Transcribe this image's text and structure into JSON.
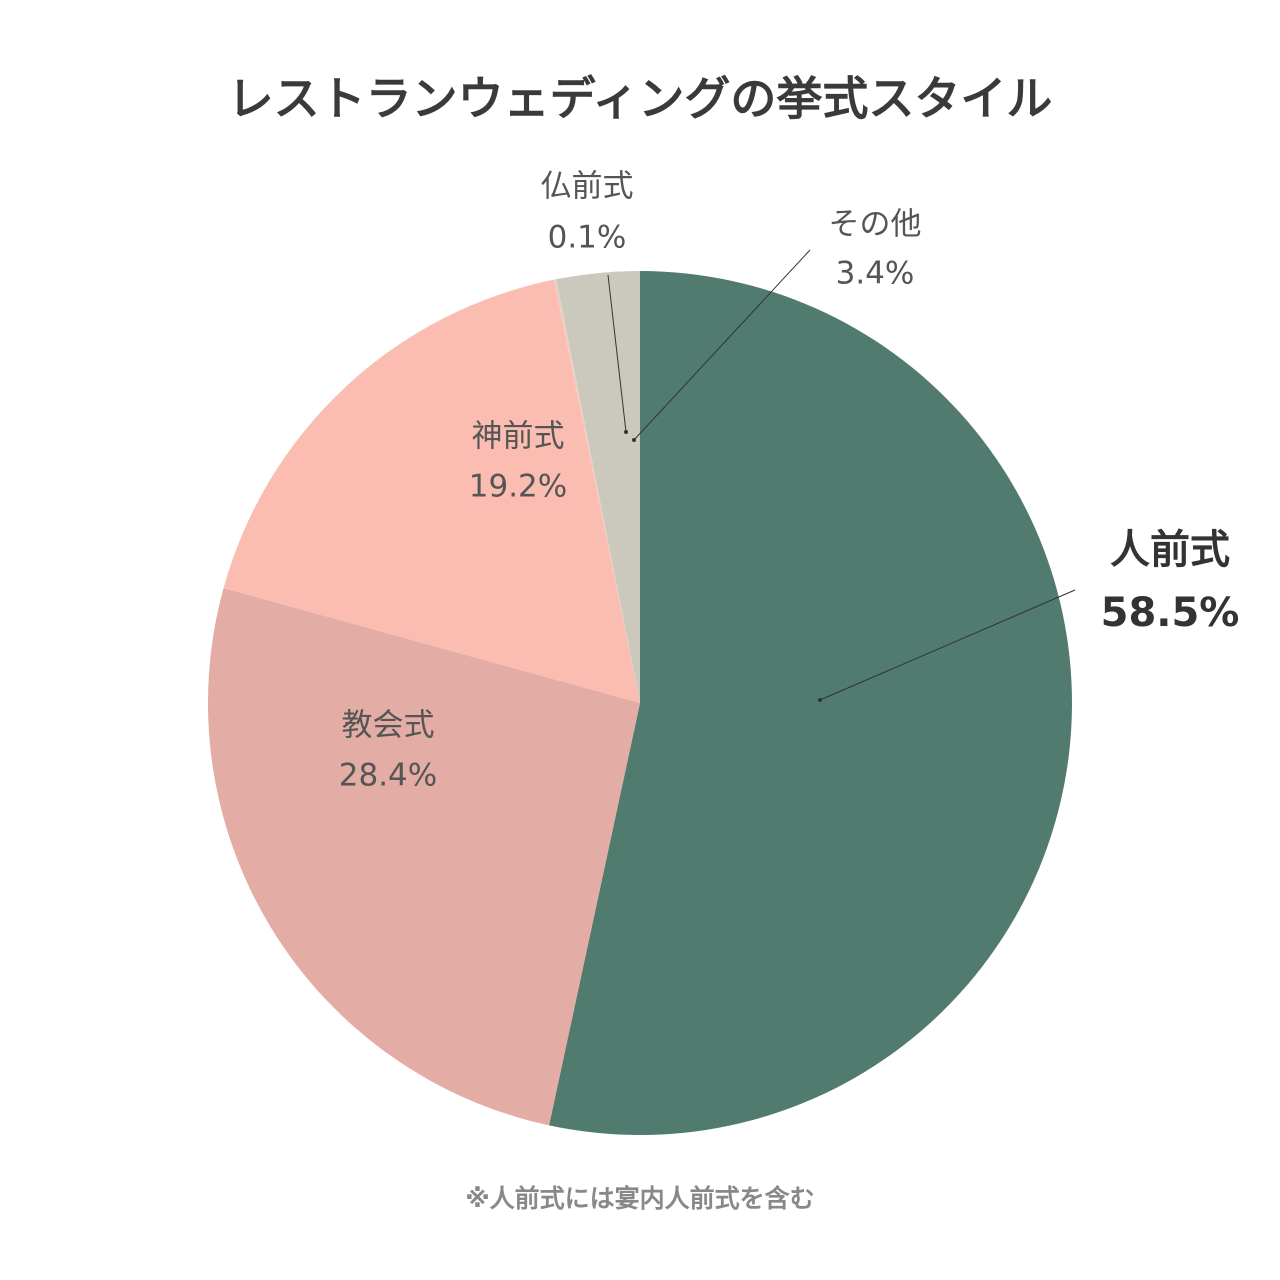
{
  "chart_data": {
    "type": "pie",
    "title": "レストランウェディングの挙式スタイル",
    "categories": [
      "人前式",
      "教会式",
      "神前式",
      "仏前式",
      "その他"
    ],
    "values": [
      58.5,
      28.4,
      19.2,
      0.1,
      3.4
    ],
    "value_labels": [
      "58.5%",
      "28.4%",
      "19.2%",
      "0.1%",
      "3.4%"
    ],
    "colors": [
      "#527b70",
      "#e3aca5",
      "#fbbdb1",
      "#e9cfc4",
      "#cbc9bd"
    ],
    "note": "※人前式には宴内人前式を含む"
  }
}
